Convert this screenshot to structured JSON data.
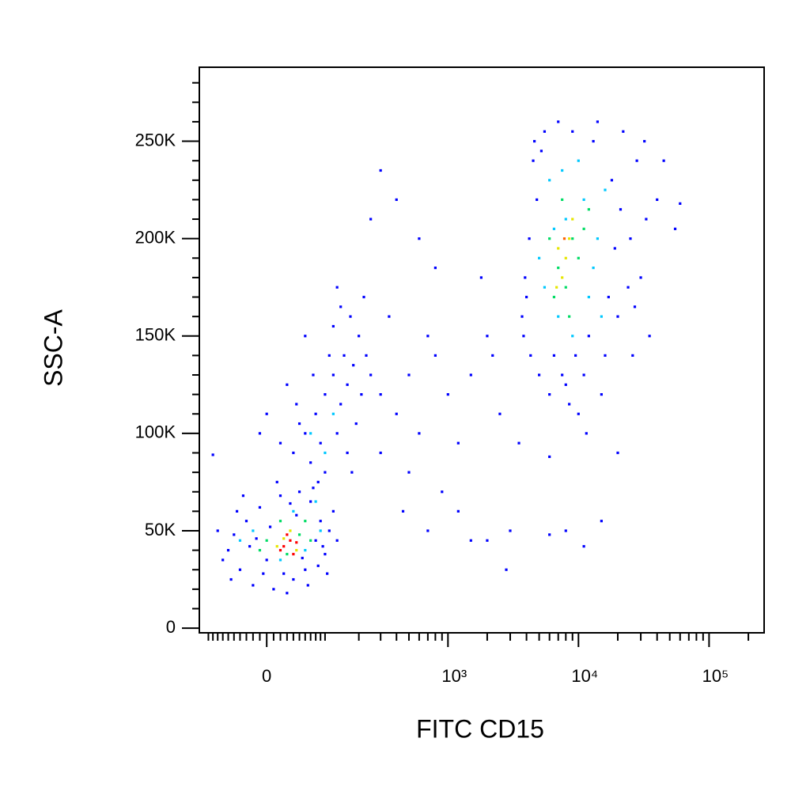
{
  "chart_data": {
    "type": "scatter",
    "x_label": "FITC CD15",
    "y_label": "SSC-A",
    "xscale": "biexponential",
    "xlim": [
      -122,
      264000
    ],
    "ylim": [
      -2400,
      288000
    ],
    "xticks": [
      0,
      {
        "value": 1000,
        "label": "10³"
      },
      {
        "value": 10000,
        "label": "10⁴"
      },
      {
        "value": 100000,
        "label": "10⁵"
      }
    ],
    "xminorticks": [
      -100,
      -90,
      -80,
      -70,
      -60,
      -50,
      -40,
      -30,
      -20,
      -10,
      10,
      20,
      30,
      40,
      50,
      60,
      70,
      80,
      90,
      100,
      200,
      300,
      400,
      500,
      600,
      700,
      800,
      900,
      2000,
      3000,
      4000,
      5000,
      6000,
      7000,
      8000,
      9000,
      20000,
      30000,
      40000,
      50000,
      60000,
      70000,
      80000,
      90000,
      200000
    ],
    "yticks": [
      0,
      {
        "value": 50000,
        "label": "50K"
      },
      {
        "value": 100000,
        "label": "100K"
      },
      {
        "value": 150000,
        "label": "150K"
      },
      {
        "value": 200000,
        "label": "200K"
      },
      {
        "value": 250000,
        "label": "250K"
      }
    ],
    "yminorticks": [
      10000,
      20000,
      30000,
      40000,
      60000,
      70000,
      80000,
      90000,
      110000,
      120000,
      130000,
      140000,
      160000,
      170000,
      180000,
      190000,
      210000,
      220000,
      230000,
      240000,
      260000,
      270000,
      280000
    ],
    "series": [
      {
        "color": "#0000ff",
        "x": [
          -60,
          -40,
          -30,
          -50,
          -20,
          -10,
          0,
          10,
          20,
          40,
          60,
          80,
          90,
          100,
          70,
          -45,
          -70,
          30,
          50,
          110,
          -25,
          5,
          120,
          -55,
          65,
          -80,
          85,
          15,
          -5,
          95,
          -90,
          45,
          75,
          130,
          -35,
          25,
          55,
          -15,
          35,
          105,
          40,
          60,
          80,
          100,
          120,
          140,
          90,
          70,
          150,
          160,
          50,
          110,
          130,
          170,
          180,
          30,
          200,
          210,
          20,
          100,
          60,
          140,
          190,
          220,
          75,
          160,
          45,
          120,
          230,
          0,
          85,
          175,
          -10,
          250,
          130,
          300,
          400,
          500,
          600,
          800,
          1000,
          1200,
          1500,
          2000,
          2500,
          300,
          450,
          700,
          1200,
          2000,
          2800,
          350,
          500,
          900,
          1800,
          400,
          300,
          600,
          800,
          250,
          3000,
          1500,
          3500,
          700,
          2200,
          3800,
          4200,
          4500,
          5000,
          5500,
          6000,
          7000,
          8000,
          9000,
          11000,
          13000,
          16000,
          20000,
          25000,
          30000,
          35000,
          40000,
          28000,
          22000,
          18000,
          4000,
          4800,
          3900,
          6500,
          15000,
          12000,
          26000,
          32000,
          45000,
          60000,
          55000,
          5200,
          4300,
          8500,
          10000,
          14000,
          19000,
          24000,
          17000,
          7500,
          3700,
          4600,
          9500,
          21000,
          27000,
          33000,
          11500,
          20000,
          6000,
          15000,
          6000,
          8000,
          11000
        ],
        "values": [
          40000,
          30000,
          55000,
          48000,
          22000,
          62000,
          35000,
          20000,
          68000,
          25000,
          30000,
          45000,
          55000,
          38000,
          65000,
          60000,
          35000,
          18000,
          70000,
          50000,
          42000,
          52000,
          60000,
          25000,
          22000,
          50000,
          32000,
          75000,
          28000,
          42000,
          89000,
          58000,
          72000,
          45000,
          68000,
          28000,
          36000,
          46000,
          64000,
          28000,
          90000,
          100000,
          110000,
          120000,
          130000,
          115000,
          95000,
          85000,
          140000,
          125000,
          105000,
          140000,
          100000,
          160000,
          135000,
          125000,
          150000,
          120000,
          95000,
          80000,
          150000,
          165000,
          105000,
          170000,
          130000,
          90000,
          115000,
          155000,
          140000,
          110000,
          75000,
          80000,
          100000,
          130000,
          175000,
          120000,
          110000,
          130000,
          100000,
          140000,
          120000,
          95000,
          130000,
          150000,
          110000,
          90000,
          60000,
          50000,
          60000,
          45000,
          30000,
          160000,
          80000,
          70000,
          180000,
          220000,
          235000,
          200000,
          185000,
          210000,
          50000,
          45000,
          95000,
          150000,
          140000,
          150000,
          200000,
          240000,
          130000,
          255000,
          120000,
          260000,
          125000,
          255000,
          130000,
          250000,
          140000,
          160000,
          200000,
          180000,
          150000,
          220000,
          240000,
          255000,
          230000,
          170000,
          220000,
          180000,
          140000,
          120000,
          150000,
          140000,
          250000,
          240000,
          218000,
          205000,
          245000,
          140000,
          115000,
          110000,
          260000,
          195000,
          175000,
          170000,
          130000,
          160000,
          250000,
          140000,
          215000,
          165000,
          210000,
          100000,
          90000,
          88000,
          55000,
          48000,
          50000,
          42000
        ]
      },
      {
        "color": "#00c8ff",
        "x": [
          5000,
          6000,
          7000,
          8000,
          10000,
          12000,
          14000,
          16000,
          5500,
          9000,
          11000,
          13000,
          6500,
          15000,
          7500,
          -20,
          40,
          60,
          80,
          100,
          120,
          70,
          20,
          -40,
          90
        ],
        "values": [
          190000,
          230000,
          160000,
          210000,
          240000,
          170000,
          200000,
          225000,
          175000,
          150000,
          220000,
          185000,
          205000,
          160000,
          235000,
          50000,
          60000,
          40000,
          65000,
          90000,
          110000,
          100000,
          35000,
          45000,
          50000
        ]
      },
      {
        "color": "#00dc64",
        "x": [
          6000,
          7000,
          8000,
          9000,
          10000,
          11000,
          12000,
          7500,
          8500,
          6500,
          0,
          20,
          50,
          30,
          60,
          -10,
          70
        ],
        "values": [
          200000,
          185000,
          175000,
          200000,
          190000,
          205000,
          215000,
          220000,
          160000,
          170000,
          45000,
          55000,
          48000,
          38000,
          55000,
          40000,
          45000
        ]
      },
      {
        "color": "#e6e600",
        "x": [
          7000,
          8000,
          9000,
          7500,
          8500,
          6800,
          15,
          35,
          45,
          25
        ],
        "values": [
          195000,
          190000,
          210000,
          180000,
          200000,
          175000,
          42000,
          50000,
          40000,
          46000
        ]
      },
      {
        "color": "#ff6400",
        "x": [
          7800
        ],
        "values": [
          200000
        ]
      },
      {
        "color": "#ff0000",
        "x": [
          25,
          35,
          40,
          30,
          20,
          45
        ],
        "values": [
          42000,
          45000,
          38000,
          48000,
          40000,
          44000
        ]
      }
    ]
  }
}
